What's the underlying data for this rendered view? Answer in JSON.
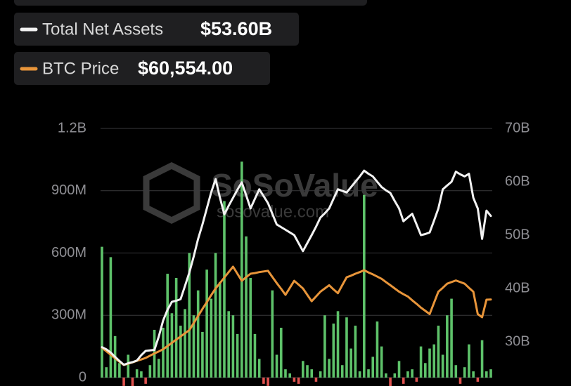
{
  "chart_data": {
    "type": "bar-line",
    "watermark": "SoSoValue",
    "watermark_url": "sosovalue.com",
    "ylim": [
      0,
      1200
    ],
    "yticks": [
      {
        "value": 0,
        "label": "0"
      },
      {
        "value": 300,
        "label": "300M"
      },
      {
        "value": 600,
        "label": "600M"
      },
      {
        "value": 900,
        "label": "900M"
      },
      {
        "value": 1200,
        "label": "1.2B"
      }
    ],
    "y2lim": [
      23.3,
      70
    ],
    "y2ticks": [
      {
        "value": 30,
        "label": "30B"
      },
      {
        "value": 40,
        "label": "40B"
      },
      {
        "value": 50,
        "label": "50B"
      },
      {
        "value": 60,
        "label": "60B"
      },
      {
        "value": 70,
        "label": "70B"
      }
    ],
    "y3lim": [
      36150,
      114000
    ],
    "grid": true,
    "series": [
      {
        "type": "bar",
        "color": "#5ec26a",
        "negative_color": "#e0524f",
        "values": [
          630,
          50,
          580,
          200,
          70,
          -40,
          110,
          -60,
          40,
          30,
          -30,
          60,
          230,
          90,
          240,
          500,
          310,
          480,
          250,
          330,
          600,
          300,
          420,
          220,
          520,
          380,
          600,
          460,
          850,
          320,
          300,
          210,
          1040,
          680,
          480,
          210,
          90,
          -30,
          -40,
          420,
          110,
          240,
          40,
          20,
          -20,
          -30,
          80,
          60,
          40,
          -20,
          30,
          300,
          90,
          260,
          320,
          60,
          290,
          140,
          250,
          30,
          880,
          40,
          100,
          270,
          150,
          20,
          -50,
          20,
          80,
          -30,
          30,
          40,
          -20,
          150,
          70,
          140,
          160,
          250,
          110,
          300,
          380,
          60,
          -30,
          50,
          160,
          30,
          -20,
          180,
          30,
          40
        ]
      },
      {
        "type": "line",
        "name": "Total Net Assets",
        "color": "#f2f2f2",
        "axis": "y2",
        "current": 53.6,
        "current_label": "$53.60B",
        "values": [
          29,
          28.6,
          28,
          27.2,
          26.4,
          25.7,
          26,
          26.2,
          26.5,
          27.5,
          28.3,
          28.4,
          28.5,
          31,
          34,
          36,
          37.5,
          37.7,
          38,
          40.5,
          43,
          46,
          49.3,
          52,
          55,
          58,
          60.5,
          57,
          53.9,
          55.5,
          57,
          58.5,
          59.9,
          57.5,
          55,
          56.8,
          58.6,
          57.3,
          56,
          54,
          52,
          51.5,
          51,
          50.5,
          50,
          48.5,
          47,
          48.5,
          50,
          51.6,
          53.3,
          54.1,
          55,
          56.8,
          58.6,
          58.3,
          58,
          59,
          60,
          61,
          62.1,
          61.5,
          61,
          60,
          59,
          58.4,
          57.9,
          56.4,
          55,
          52.6,
          53.3,
          54,
          52,
          50,
          50.2,
          50.5,
          52.7,
          55,
          58.6,
          59.3,
          60,
          61.9,
          61.4,
          61,
          61.5,
          57,
          55,
          49.3,
          54.6,
          53.6
        ]
      },
      {
        "type": "line",
        "name": "BTC Price",
        "color": "#e8953a",
        "axis": "y3",
        "current": 60554,
        "current_label": "$60,554.00",
        "values": [
          45500,
          44400,
          43300,
          42200,
          41100,
          40100,
          40500,
          40900,
          41400,
          41800,
          42300,
          43000,
          43700,
          44300,
          45000,
          46000,
          47000,
          48000,
          49000,
          50000,
          51000,
          53200,
          55400,
          57600,
          59700,
          61900,
          64000,
          65700,
          67400,
          69100,
          70800,
          68600,
          66400,
          67500,
          68600,
          68800,
          69100,
          69300,
          69500,
          67600,
          65700,
          63900,
          62000,
          64200,
          66400,
          65200,
          64000,
          62000,
          60000,
          61500,
          63000,
          64000,
          65000,
          63700,
          62500,
          65000,
          67500,
          68000,
          68600,
          69100,
          69700,
          69000,
          68400,
          67700,
          67000,
          66000,
          65000,
          64000,
          63000,
          62200,
          61500,
          60300,
          59200,
          58000,
          57000,
          56000,
          59500,
          63000,
          64200,
          65500,
          66000,
          66500,
          66000,
          65500,
          64200,
          63000,
          56000,
          55000,
          60500,
          60554
        ]
      }
    ]
  }
}
